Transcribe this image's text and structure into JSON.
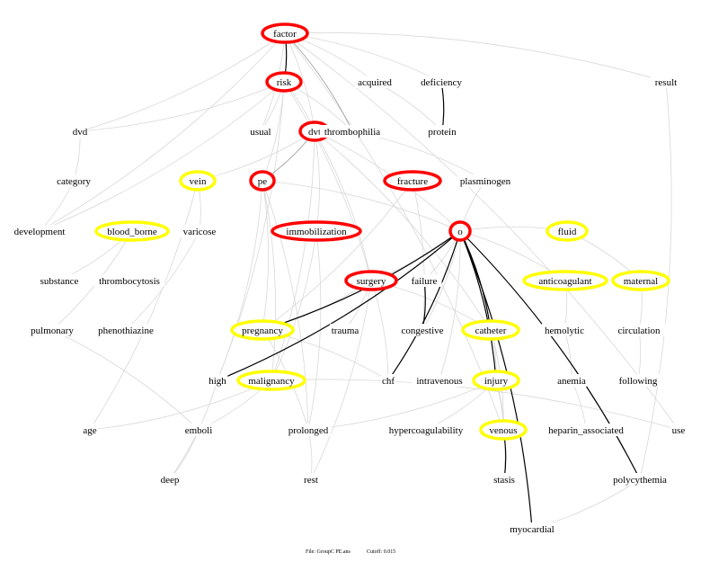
{
  "footer": {
    "file": "File: GroupC PE.ans",
    "cutoff": "Cutoff: 0.015"
  },
  "colors": {
    "core": "#ff0000",
    "secondary": "#ffff00",
    "strong_edge": "#000000",
    "medium_edge": "#999999",
    "weak_edge": "#d8d8d8"
  },
  "nodes": [
    {
      "id": "factor",
      "style": "core"
    },
    {
      "id": "risk",
      "style": "core"
    },
    {
      "id": "acquired"
    },
    {
      "id": "deficiency"
    },
    {
      "id": "result"
    },
    {
      "id": "dvd"
    },
    {
      "id": "usual"
    },
    {
      "id": "dvt",
      "style": "core"
    },
    {
      "id": "thrombophilia"
    },
    {
      "id": "protein"
    },
    {
      "id": "category"
    },
    {
      "id": "vein",
      "style": "secondary"
    },
    {
      "id": "pe",
      "style": "core"
    },
    {
      "id": "fracture",
      "style": "core"
    },
    {
      "id": "plasminogen"
    },
    {
      "id": "development"
    },
    {
      "id": "blood_borne",
      "style": "secondary"
    },
    {
      "id": "varicose"
    },
    {
      "id": "immobilization",
      "style": "core"
    },
    {
      "id": "o",
      "style": "core"
    },
    {
      "id": "fluid",
      "style": "secondary"
    },
    {
      "id": "substance"
    },
    {
      "id": "thrombocytosis"
    },
    {
      "id": "surgery",
      "style": "core"
    },
    {
      "id": "failure"
    },
    {
      "id": "anticoagulant",
      "style": "secondary"
    },
    {
      "id": "maternal",
      "style": "secondary"
    },
    {
      "id": "pulmonary"
    },
    {
      "id": "phenothiazine"
    },
    {
      "id": "pregnancy",
      "style": "secondary"
    },
    {
      "id": "trauma"
    },
    {
      "id": "congestive"
    },
    {
      "id": "catheter",
      "style": "secondary"
    },
    {
      "id": "hemolytic"
    },
    {
      "id": "circulation"
    },
    {
      "id": "high"
    },
    {
      "id": "malignancy",
      "style": "secondary"
    },
    {
      "id": "chf"
    },
    {
      "id": "intravenous"
    },
    {
      "id": "injury",
      "style": "secondary"
    },
    {
      "id": "anemia"
    },
    {
      "id": "following"
    },
    {
      "id": "age"
    },
    {
      "id": "emboli"
    },
    {
      "id": "prolonged"
    },
    {
      "id": "hypercoagulability"
    },
    {
      "id": "venous",
      "style": "secondary"
    },
    {
      "id": "heparin_associated"
    },
    {
      "id": "use"
    },
    {
      "id": "deep"
    },
    {
      "id": "rest"
    },
    {
      "id": "stasis"
    },
    {
      "id": "polycythemia"
    },
    {
      "id": "myocardial"
    }
  ],
  "edges": {
    "strong": [
      [
        "factor",
        "risk"
      ],
      [
        "deficiency",
        "protein"
      ],
      [
        "failure",
        "congestive"
      ],
      [
        "venous",
        "stasis"
      ],
      [
        "o",
        "high"
      ],
      [
        "o",
        "pregnancy"
      ],
      [
        "o",
        "catheter"
      ],
      [
        "o",
        "chf"
      ],
      [
        "o",
        "myocardial"
      ],
      [
        "o",
        "polycythemia"
      ],
      [
        "o",
        "injury"
      ]
    ],
    "medium": [
      [
        "factor",
        "thrombophilia"
      ],
      [
        "dvt",
        "pe"
      ]
    ],
    "weak": [
      [
        "factor",
        "dvd"
      ],
      [
        "factor",
        "development"
      ],
      [
        "factor",
        "acquired"
      ],
      [
        "factor",
        "deficiency"
      ],
      [
        "factor",
        "result"
      ],
      [
        "factor",
        "use"
      ],
      [
        "factor",
        "dvt"
      ],
      [
        "factor",
        "usual"
      ],
      [
        "factor",
        "venous"
      ],
      [
        "risk",
        "dvd"
      ],
      [
        "risk",
        "usual"
      ],
      [
        "risk",
        "dvt"
      ],
      [
        "risk",
        "thrombophilia"
      ],
      [
        "risk",
        "development"
      ],
      [
        "risk",
        "high"
      ],
      [
        "risk",
        "pe"
      ],
      [
        "risk",
        "surgery"
      ],
      [
        "dvd",
        "category"
      ],
      [
        "category",
        "development"
      ],
      [
        "acquired",
        "protein"
      ],
      [
        "thrombophilia",
        "plasminogen"
      ],
      [
        "dvt",
        "vein"
      ],
      [
        "dvt",
        "immobilization"
      ],
      [
        "dvt",
        "surgery"
      ],
      [
        "dvt",
        "o"
      ],
      [
        "dvt",
        "malignancy"
      ],
      [
        "dvt",
        "catheter"
      ],
      [
        "vein",
        "varicose"
      ],
      [
        "vein",
        "age"
      ],
      [
        "pe",
        "pregnancy"
      ],
      [
        "pe",
        "malignancy"
      ],
      [
        "pe",
        "high"
      ],
      [
        "pe",
        "o"
      ],
      [
        "pe",
        "prolonged"
      ],
      [
        "fracture",
        "pregnancy"
      ],
      [
        "fracture",
        "congestive"
      ],
      [
        "immobilization",
        "malignancy"
      ],
      [
        "immobilization",
        "prolonged"
      ],
      [
        "blood_borne",
        "substance"
      ],
      [
        "blood_borne",
        "pulmonary"
      ],
      [
        "varicose",
        "phenothiazine"
      ],
      [
        "pulmonary",
        "emboli"
      ],
      [
        "o",
        "surgery"
      ],
      [
        "o",
        "failure"
      ],
      [
        "o",
        "anticoagulant"
      ],
      [
        "o",
        "fluid"
      ],
      [
        "o",
        "plasminogen"
      ],
      [
        "o",
        "congestive"
      ],
      [
        "o",
        "intravenous"
      ],
      [
        "fluid",
        "maternal"
      ],
      [
        "anticoagulant",
        "hemolytic"
      ],
      [
        "hemolytic",
        "anemia"
      ],
      [
        "anemia",
        "heparin_associated"
      ],
      [
        "maternal",
        "circulation"
      ],
      [
        "circulation",
        "following"
      ],
      [
        "surgery",
        "trauma"
      ],
      [
        "surgery",
        "pregnancy"
      ],
      [
        "surgery",
        "catheter"
      ],
      [
        "surgery",
        "chf"
      ],
      [
        "surgery",
        "rest"
      ],
      [
        "pregnancy",
        "chf"
      ],
      [
        "pregnancy",
        "prolonged"
      ],
      [
        "malignancy",
        "emboli"
      ],
      [
        "malignancy",
        "use"
      ],
      [
        "malignancy",
        "age"
      ],
      [
        "catheter",
        "injury"
      ],
      [
        "catheter",
        "venous"
      ],
      [
        "injury",
        "venous"
      ],
      [
        "injury",
        "prolonged"
      ],
      [
        "injury",
        "hypercoagulability"
      ],
      [
        "injury",
        "stasis"
      ],
      [
        "emboli",
        "deep"
      ],
      [
        "prolonged",
        "rest"
      ],
      [
        "polycythemia",
        "myocardial"
      ],
      [
        "result",
        "polycythemia"
      ],
      [
        "high",
        "deep"
      ]
    ]
  }
}
